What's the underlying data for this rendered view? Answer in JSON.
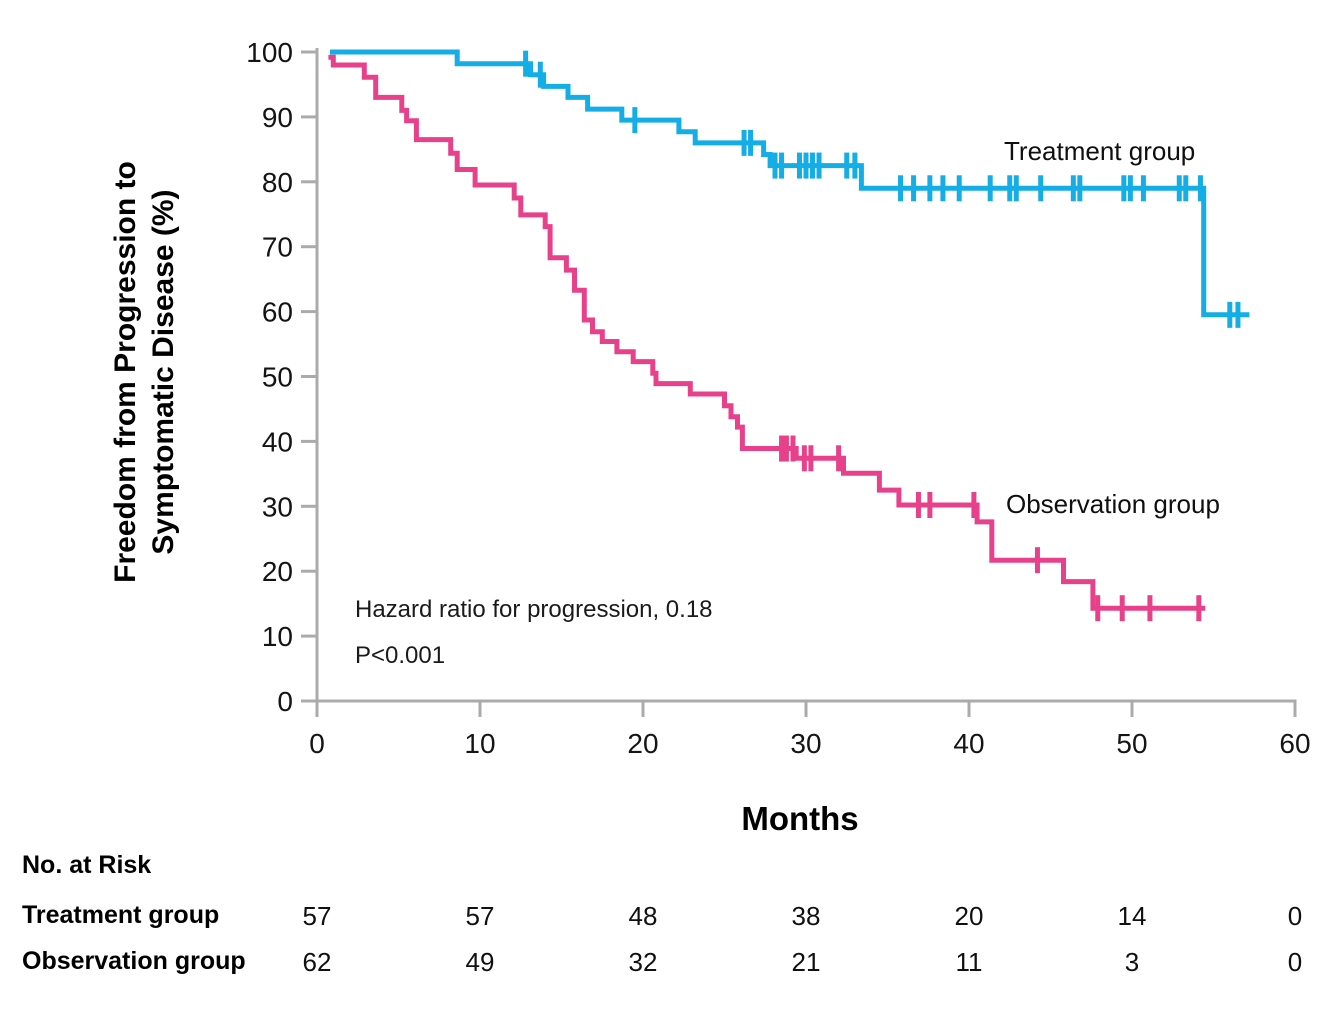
{
  "y_axis": {
    "title_line1": "Freedom from Progression to",
    "title_line2": "Symptomatic Disease (%)",
    "ticks": [
      0,
      10,
      20,
      30,
      40,
      50,
      60,
      70,
      80,
      90,
      100
    ]
  },
  "x_axis": {
    "title": "Months",
    "ticks": [
      0,
      10,
      20,
      30,
      40,
      50,
      60
    ]
  },
  "annotations": {
    "hazard_ratio": "Hazard ratio for progression, 0.18",
    "p_value": "P<0.001"
  },
  "chart_data": {
    "type": "line",
    "subtype": "kaplan-meier-step",
    "title": "",
    "xlabel": "Months",
    "ylabel": "Freedom from Progression to Symptomatic Disease (%)",
    "xlim": [
      0,
      60
    ],
    "ylim": [
      0,
      100
    ],
    "x_ticks": [
      0,
      10,
      20,
      30,
      40,
      50,
      60
    ],
    "y_ticks": [
      0,
      10,
      20,
      30,
      40,
      50,
      60,
      70,
      80,
      90,
      100
    ],
    "grid": false,
    "legend_position": "inline-labels",
    "axis_color": "#ababab",
    "annotations": [
      "Hazard ratio for progression, 0.18",
      "P<0.001"
    ],
    "series": [
      {
        "name": "Treatment group",
        "color": "#14ade5",
        "steps": [
          [
            0.8,
            100
          ],
          [
            8.6,
            98.2
          ],
          [
            13.1,
            96.5
          ],
          [
            13.9,
            94.7
          ],
          [
            15.4,
            93.0
          ],
          [
            16.6,
            91.2
          ],
          [
            18.7,
            89.5
          ],
          [
            22.2,
            87.7
          ],
          [
            23.2,
            86.0
          ],
          [
            27.4,
            84.2
          ],
          [
            27.8,
            82.5
          ],
          [
            33.4,
            79.0
          ],
          [
            54.4,
            59.5
          ]
        ],
        "end_month": 57.2,
        "censors": [
          12.8,
          13.7,
          19.5,
          26.2,
          26.6,
          28.1,
          28.5,
          29.6,
          30.0,
          30.4,
          30.8,
          32.5,
          33.0,
          35.8,
          36.6,
          37.6,
          38.4,
          39.4,
          41.3,
          42.5,
          42.9,
          44.4,
          46.4,
          46.8,
          49.5,
          49.9,
          50.7,
          52.9,
          53.3,
          54.2,
          56.0,
          56.5
        ]
      },
      {
        "name": "Observation group",
        "color": "#e8418c",
        "steps": [
          [
            0.7,
            99.2
          ],
          [
            1.0,
            98.0
          ],
          [
            2.9,
            96.1
          ],
          [
            3.6,
            93.0
          ],
          [
            5.2,
            91.0
          ],
          [
            5.5,
            89.4
          ],
          [
            6.1,
            86.5
          ],
          [
            8.2,
            84.4
          ],
          [
            8.6,
            81.9
          ],
          [
            9.7,
            79.5
          ],
          [
            12.1,
            77.5
          ],
          [
            12.5,
            74.9
          ],
          [
            14.0,
            73.1
          ],
          [
            14.3,
            68.3
          ],
          [
            15.3,
            66.4
          ],
          [
            15.8,
            63.3
          ],
          [
            16.4,
            58.7
          ],
          [
            16.9,
            56.9
          ],
          [
            17.5,
            55.4
          ],
          [
            18.4,
            53.8
          ],
          [
            19.4,
            52.3
          ],
          [
            20.6,
            50.5
          ],
          [
            20.8,
            48.9
          ],
          [
            22.9,
            47.3
          ],
          [
            25.0,
            45.5
          ],
          [
            25.4,
            43.8
          ],
          [
            25.8,
            42.2
          ],
          [
            26.1,
            38.9
          ],
          [
            29.4,
            37.4
          ],
          [
            32.3,
            35.1
          ],
          [
            34.5,
            32.5
          ],
          [
            35.7,
            30.2
          ],
          [
            40.5,
            27.6
          ],
          [
            41.4,
            21.7
          ],
          [
            45.8,
            18.4
          ],
          [
            47.6,
            14.3
          ]
        ],
        "end_month": 54.5,
        "censors": [
          28.5,
          28.8,
          29.2,
          29.9,
          30.3,
          32.0,
          36.9,
          37.6,
          40.3,
          44.2,
          47.9,
          49.4,
          51.1,
          54.1
        ]
      }
    ]
  },
  "risk_table": {
    "header": "No. at Risk",
    "columns_months": [
      0,
      10,
      20,
      30,
      40,
      50,
      60
    ],
    "rows": [
      {
        "label": "Treatment group",
        "values": [
          "57",
          "57",
          "48",
          "38",
          "20",
          "14",
          "0"
        ]
      },
      {
        "label": "Observation group",
        "values": [
          "62",
          "49",
          "32",
          "21",
          "11",
          "3",
          "0"
        ]
      }
    ]
  }
}
